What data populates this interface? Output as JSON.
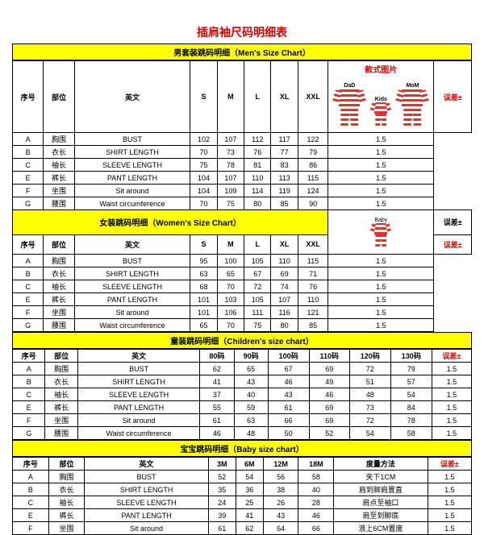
{
  "title": "插肩袖尺码明细表",
  "colors": {
    "title": "#d00",
    "section_bg": "#ffff00",
    "border": "#000"
  },
  "img_header": "款式图片",
  "img_labels": {
    "dad": "DaD",
    "kids": "Kids",
    "mom": "MoM",
    "baby": "Baby"
  },
  "mens": {
    "title": "男套装跳码明细（Men's Size Chart）",
    "headers": [
      "序号",
      "部位",
      "英文",
      "S",
      "M",
      "L",
      "XL",
      "XXL"
    ],
    "tolerance_header": "误差±",
    "rows": [
      [
        "A",
        "胸围",
        "BUST",
        "102",
        "107",
        "112",
        "117",
        "122",
        "1.5"
      ],
      [
        "B",
        "衣长",
        "SHIRT LENGTH",
        "70",
        "73",
        "76",
        "77",
        "79",
        "1.5"
      ],
      [
        "C",
        "袖长",
        "SLEEVE LENGTH",
        "75",
        "78",
        "81",
        "83",
        "86",
        "1.5"
      ],
      [
        "E",
        "裤长",
        "PANT LENGTH",
        "104",
        "107",
        "110",
        "113",
        "115",
        "1.5"
      ],
      [
        "F",
        "坐围",
        "Sit around",
        "104",
        "109",
        "114",
        "119",
        "124",
        "1.5"
      ],
      [
        "G",
        "腰围",
        "Waist circumference",
        "70",
        "75",
        "80",
        "85",
        "90",
        "1.5"
      ]
    ]
  },
  "womens": {
    "title": "女装跳码明细（Women's Size Chart）",
    "headers": [
      "序号",
      "部位",
      "英文",
      "S",
      "M",
      "L",
      "XL",
      "XXL"
    ],
    "tolerance_header": "误差±",
    "rows": [
      [
        "A",
        "胸围",
        "BUST",
        "95",
        "100",
        "105",
        "110",
        "115",
        "1.5"
      ],
      [
        "B",
        "衣长",
        "SHIRT LENGTH",
        "63",
        "65",
        "67",
        "69",
        "71",
        "1.5"
      ],
      [
        "C",
        "袖长",
        "SLEEVE LENGTH",
        "68",
        "70",
        "72",
        "74",
        "76",
        "1.5"
      ],
      [
        "E",
        "裤长",
        "PANT LENGTH",
        "101",
        "103",
        "105",
        "107",
        "110",
        "1.5"
      ],
      [
        "F",
        "坐围",
        "Sit around",
        "101",
        "106",
        "111",
        "116",
        "121",
        "1.5"
      ],
      [
        "G",
        "腰围",
        "Waist circumference",
        "65",
        "70",
        "75",
        "80",
        "85",
        "1.5"
      ]
    ]
  },
  "children": {
    "title": "童装跳码明细（Children's size chart）",
    "headers": [
      "序号",
      "部位",
      "英文",
      "80码",
      "90码",
      "100码",
      "110码",
      "120码",
      "130码"
    ],
    "tolerance_header": "误差±",
    "rows": [
      [
        "A",
        "胸围",
        "BUST",
        "62",
        "65",
        "67",
        "69",
        "72",
        "79",
        "1.5"
      ],
      [
        "B",
        "衣长",
        "SHIRT LENGTH",
        "41",
        "43",
        "46",
        "49",
        "51",
        "57",
        "1.5"
      ],
      [
        "C",
        "袖长",
        "SLEEVE LENGTH",
        "37",
        "40",
        "43",
        "46",
        "48",
        "54",
        "1.5"
      ],
      [
        "E",
        "裤长",
        "PANT LENGTH",
        "55",
        "59",
        "61",
        "69",
        "73",
        "84",
        "1.5"
      ],
      [
        "F",
        "坐围",
        "Sit around",
        "61",
        "63",
        "66",
        "69",
        "72",
        "78",
        "1.5"
      ],
      [
        "G",
        "腰围",
        "Waist circumference",
        "46",
        "48",
        "50",
        "52",
        "54",
        "58",
        "1.5"
      ]
    ]
  },
  "baby": {
    "title": "宝宝跳码明细（Baby size chart）",
    "headers": [
      "序号",
      "部位",
      "英文",
      "3M",
      "6M",
      "12M",
      "18M"
    ],
    "measure_header": "度量方法",
    "tolerance_header": "误差±",
    "rows": [
      [
        "A",
        "胸围",
        "BUST",
        "52",
        "54",
        "56",
        "58",
        "夹下1CM",
        "1.5"
      ],
      [
        "B",
        "衣长",
        "SHIRT LENGTH",
        "35",
        "36",
        "38",
        "40",
        "肩到脚肩置直",
        "1.5"
      ],
      [
        "C",
        "袖长",
        "SLEEVE LENGTH",
        "24",
        "25",
        "26",
        "28",
        "肩点至袖口",
        "1.5"
      ],
      [
        "E",
        "裤长",
        "PANT LENGTH",
        "39",
        "41",
        "43",
        "46",
        "肩至到脚底",
        "1.5"
      ],
      [
        "F",
        "坐围",
        "Sit around",
        "61",
        "62",
        "64",
        "66",
        "浪上6CM置度",
        "1.5"
      ]
    ]
  }
}
